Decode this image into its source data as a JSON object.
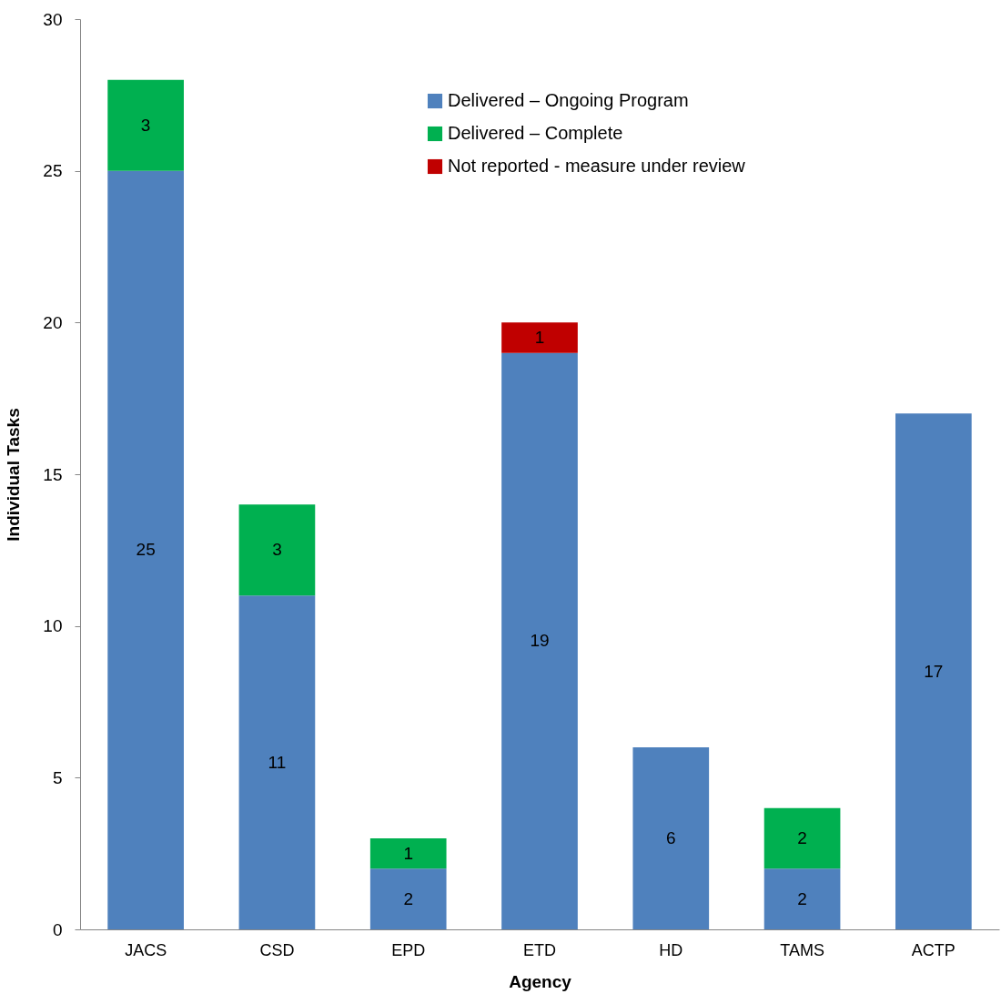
{
  "chart_data": {
    "type": "bar",
    "stacked": true,
    "xlabel": "Agency",
    "ylabel": "Individual Tasks",
    "categories": [
      "JACS",
      "CSD",
      "EPD",
      "ETD",
      "HD",
      "TAMS",
      "ACTP"
    ],
    "series": [
      {
        "name": "Delivered – Ongoing Program",
        "color": "#4f81bd",
        "values": [
          25,
          11,
          2,
          19,
          6,
          2,
          17
        ]
      },
      {
        "name": "Delivered – Complete",
        "color": "#00b050",
        "values": [
          3,
          3,
          1,
          null,
          null,
          2,
          null
        ]
      },
      {
        "name": "Not reported - measure under review",
        "color": "#c00000",
        "values": [
          null,
          null,
          null,
          1,
          null,
          null,
          null
        ]
      }
    ],
    "ylim": [
      0,
      30
    ],
    "yticks": [
      0,
      5,
      10,
      15,
      20,
      25,
      30
    ],
    "grid": false,
    "legend": "top right",
    "data_labels": true
  }
}
